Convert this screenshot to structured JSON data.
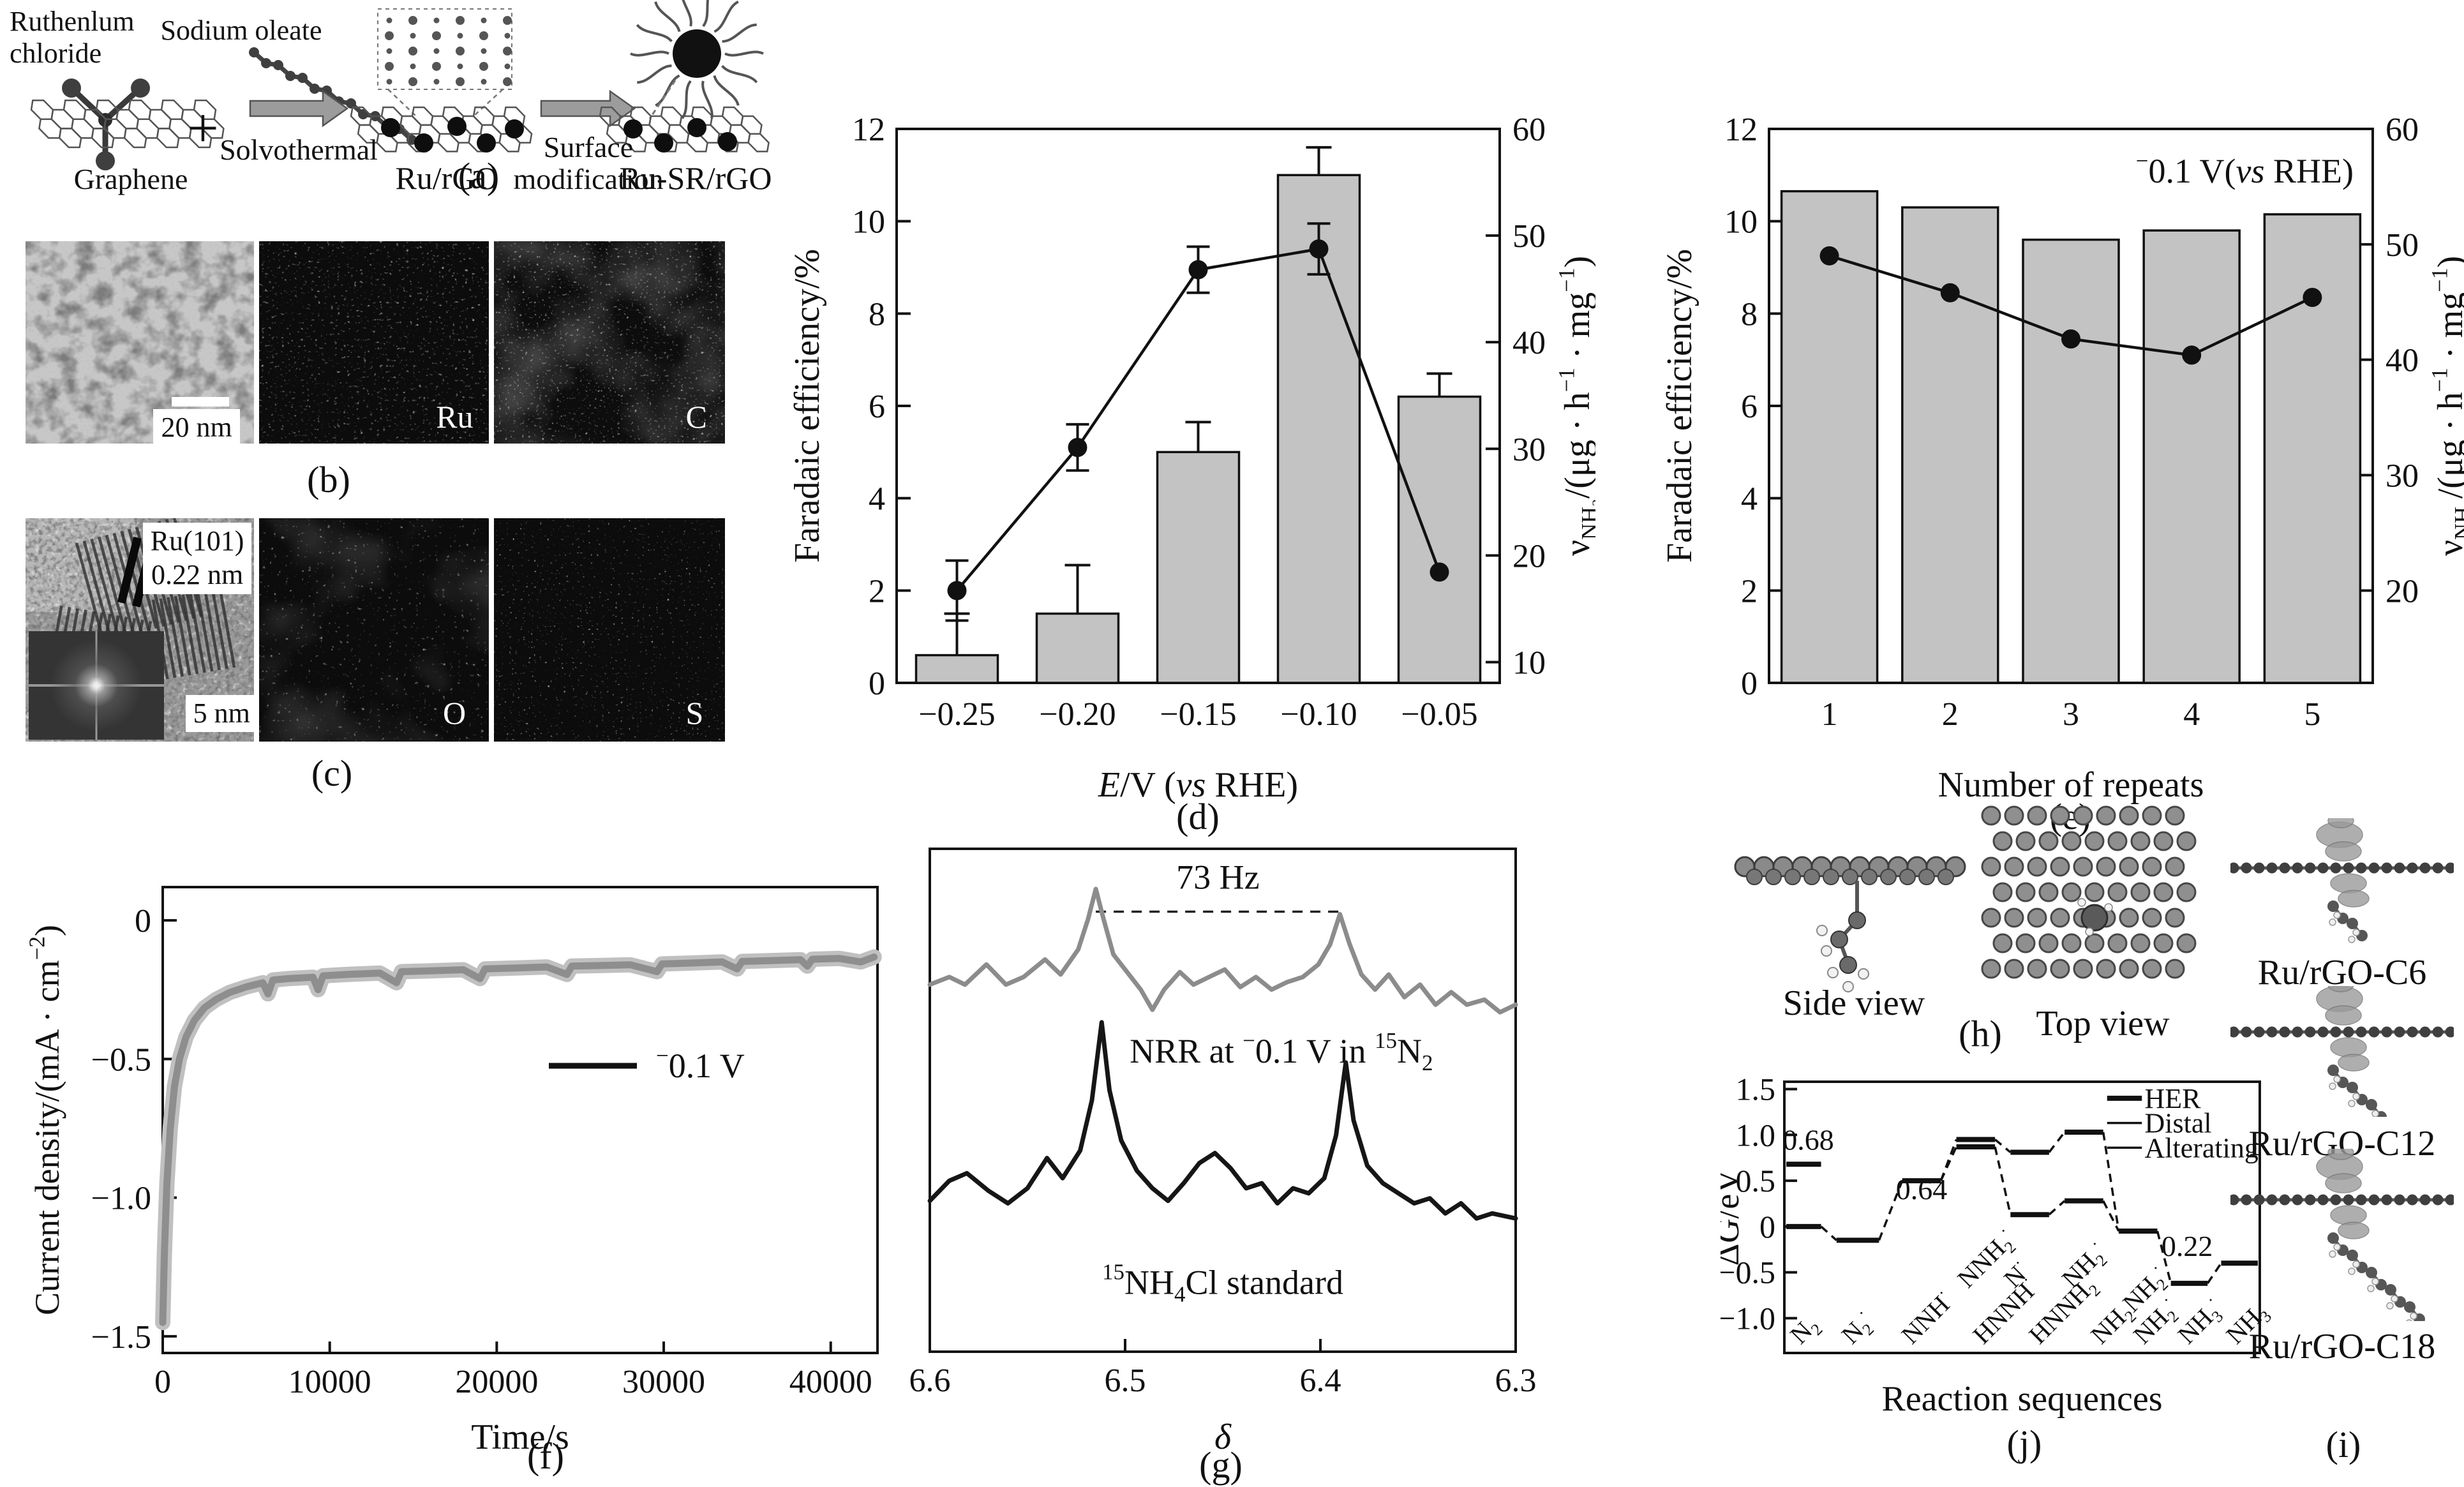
{
  "figure": {
    "captions": {
      "a": "(a)",
      "b": "(b)",
      "c": "(c)",
      "d": "(d)",
      "e": "(e)",
      "f": "(f)",
      "g": "(g)",
      "h": "(h)",
      "i": "(i)",
      "j": "(j)"
    }
  },
  "panel_a": {
    "reactant1_line1": "Ruthenlum",
    "reactant1_line2": "chloride",
    "plus": "+",
    "reactant2": "Sodium oleate",
    "support": "Graphene",
    "arrow1_label": "Solvothermal",
    "product1": "Ru/rGO",
    "arrow2_label_line1": "Surface",
    "arrow2_label_line2": "modification",
    "product2": "Ru-SR/rGO"
  },
  "panel_b": {
    "scale_bar": "20 nm",
    "map1": "Ru",
    "map2": "C"
  },
  "panel_c": {
    "lattice_line1": "Ru(101)",
    "lattice_line2": "0.22 nm",
    "scale_bar": "5 nm",
    "map1": "O",
    "map2": "S"
  },
  "panel_h": {
    "label_side": "Side view",
    "label_top": "Top view"
  },
  "panel_i": {
    "item1": "Ru/rGO-C6",
    "item2": "Ru/rGO-C12",
    "item3": "Ru/rGO-C18"
  },
  "colors": {
    "bar_fill": "#c3c3c3",
    "axis": "#111111",
    "gray_curve": "#8e8e8e",
    "gray_halo": "#c0c0c0",
    "nmr_gray": "#8c8c8c",
    "black": "#161616"
  },
  "chart_data": [
    {
      "panel": "d",
      "type": "bar+line",
      "categories": [
        "−0.25",
        "−0.20",
        "−0.15",
        "−0.10",
        "−0.05"
      ],
      "bar_series": {
        "name": "Faradaic efficiency",
        "axis": "left",
        "values": [
          0.6,
          1.5,
          5.0,
          11.0,
          6.2
        ],
        "err_up": [
          0.9,
          1.05,
          0.65,
          0.6,
          0.5
        ]
      },
      "line_series": {
        "name": "NH3 yield rate",
        "axis": "right",
        "values_right": [
          17.5,
          31,
          47,
          49,
          19.5
        ],
        "values_left_equiv": [
          2.0,
          5.1,
          8.95,
          9.4,
          2.4
        ],
        "err_left": [
          0.65,
          0.5,
          0.5,
          0.55,
          0
        ]
      },
      "xlabel": "*E*/V (*vs* RHE)",
      "ylabel_left": "Faradaic efficiency/%",
      "ylabel_right": "ν~NH₃~/(μg · h^−1^ · mg^−1^)",
      "ylim_left": [
        0,
        12
      ],
      "yticks_left": [
        0,
        2,
        4,
        6,
        8,
        10,
        12
      ],
      "yticks_right": [
        {
          "label": "60",
          "left_pos": 12
        },
        {
          "label": "50",
          "left_pos": 9.69
        },
        {
          "label": "40",
          "left_pos": 7.38
        },
        {
          "label": "30",
          "left_pos": 5.07
        },
        {
          "label": "20",
          "left_pos": 2.76
        },
        {
          "label": "10",
          "left_pos": 0.45
        }
      ],
      "grid": false
    },
    {
      "panel": "e",
      "type": "bar+line",
      "categories": [
        "1",
        "2",
        "3",
        "4",
        "5"
      ],
      "annotation": "^−^0.1 V(*vs* RHE)",
      "bar_series": {
        "name": "Faradaic efficiency",
        "axis": "left",
        "values": [
          10.65,
          10.3,
          9.6,
          9.8,
          10.15
        ],
        "err_up": [
          0,
          0,
          0,
          0,
          0
        ]
      },
      "line_series": {
        "name": "NH3 yield rate",
        "axis": "right",
        "values_right": [
          49,
          45.8,
          41.8,
          40.4,
          45.4
        ],
        "values_left_equiv": [
          9.25,
          8.45,
          7.45,
          7.1,
          8.35
        ],
        "err_left": [
          0,
          0,
          0,
          0,
          0
        ]
      },
      "xlabel": "Number of repeats",
      "ylabel_left": "Faradaic efficiency/%",
      "ylabel_right": "ν~NH₃~/(μg · h^−1^ · mg^−1^)",
      "ylim_left": [
        0,
        12
      ],
      "yticks_left": [
        0,
        2,
        4,
        6,
        8,
        10,
        12
      ],
      "yticks_right": [
        {
          "label": "60",
          "left_pos": 12
        },
        {
          "label": "50",
          "left_pos": 9.5
        },
        {
          "label": "40",
          "left_pos": 7
        },
        {
          "label": "30",
          "left_pos": 4.5
        },
        {
          "label": "20",
          "left_pos": 2
        }
      ],
      "grid": false
    },
    {
      "panel": "f",
      "type": "line",
      "xlabel": "Time/s",
      "ylabel": "Current density/(mA · cm^−2^)",
      "legend": "^−^0.1 V",
      "xlim": [
        0,
        42800
      ],
      "ylim": [
        -1.56,
        0.12
      ],
      "xticks": [
        {
          "label": "0",
          "v": 0
        },
        {
          "label": "10000",
          "v": 10000
        },
        {
          "label": "20000",
          "v": 20000
        },
        {
          "label": "30000",
          "v": 30000
        },
        {
          "label": "40000",
          "v": 40000
        }
      ],
      "yticks": [
        {
          "label": "0",
          "v": 0
        },
        {
          "label": "−0.5",
          "v": -0.5
        },
        {
          "label": "−1.0",
          "v": -1.0
        },
        {
          "label": "−1.5",
          "v": -1.5
        }
      ],
      "points": [
        [
          0,
          -1.45
        ],
        [
          100,
          -1.2
        ],
        [
          250,
          -0.95
        ],
        [
          450,
          -0.75
        ],
        [
          700,
          -0.6
        ],
        [
          1000,
          -0.5
        ],
        [
          1400,
          -0.42
        ],
        [
          1900,
          -0.36
        ],
        [
          2500,
          -0.315
        ],
        [
          3200,
          -0.285
        ],
        [
          4000,
          -0.26
        ],
        [
          5000,
          -0.24
        ],
        [
          6000,
          -0.225
        ],
        [
          6300,
          -0.265
        ],
        [
          6600,
          -0.215
        ],
        [
          7500,
          -0.21
        ],
        [
          9000,
          -0.205
        ],
        [
          9300,
          -0.25
        ],
        [
          9600,
          -0.2
        ],
        [
          11000,
          -0.195
        ],
        [
          13000,
          -0.19
        ],
        [
          14000,
          -0.225
        ],
        [
          14300,
          -0.185
        ],
        [
          16000,
          -0.182
        ],
        [
          18000,
          -0.178
        ],
        [
          19000,
          -0.21
        ],
        [
          19300,
          -0.175
        ],
        [
          21000,
          -0.172
        ],
        [
          23000,
          -0.168
        ],
        [
          24200,
          -0.195
        ],
        [
          24500,
          -0.165
        ],
        [
          26000,
          -0.163
        ],
        [
          28000,
          -0.16
        ],
        [
          29600,
          -0.185
        ],
        [
          29900,
          -0.157
        ],
        [
          31500,
          -0.154
        ],
        [
          33500,
          -0.15
        ],
        [
          34400,
          -0.175
        ],
        [
          34700,
          -0.148
        ],
        [
          36500,
          -0.145
        ],
        [
          38200,
          -0.142
        ],
        [
          38600,
          -0.165
        ],
        [
          38900,
          -0.14
        ],
        [
          40500,
          -0.137
        ],
        [
          41800,
          -0.15
        ],
        [
          42600,
          -0.132
        ]
      ]
    },
    {
      "panel": "g",
      "type": "line",
      "xlabel": "*δ*",
      "xlim": [
        6.6,
        6.3
      ],
      "xticks": [
        {
          "label": "6.6",
          "v": 6.6
        },
        {
          "label": "6.5",
          "v": 6.5
        },
        {
          "label": "6.4",
          "v": 6.4
        },
        {
          "label": "6.3",
          "v": 6.3
        }
      ],
      "annotation": "73 Hz",
      "peak_separation_hz": 73,
      "peaks_delta": [
        6.515,
        6.39
      ],
      "dash_y": 0.875,
      "traces": [
        {
          "label": "NRR at ^−^0.1 V in ^15^N~2~",
          "color_key": "nmr_gray",
          "label_xy": [
            6.42,
            0.575
          ],
          "points": [
            [
              6.6,
              0.73
            ],
            [
              6.59,
              0.745
            ],
            [
              6.582,
              0.73
            ],
            [
              6.571,
              0.77
            ],
            [
              6.561,
              0.73
            ],
            [
              6.552,
              0.745
            ],
            [
              6.541,
              0.78
            ],
            [
              6.533,
              0.75
            ],
            [
              6.524,
              0.8
            ],
            [
              6.519,
              0.86
            ],
            [
              6.515,
              0.92
            ],
            [
              6.511,
              0.86
            ],
            [
              6.506,
              0.79
            ],
            [
              6.499,
              0.755
            ],
            [
              6.492,
              0.72
            ],
            [
              6.486,
              0.68
            ],
            [
              6.48,
              0.72
            ],
            [
              6.472,
              0.755
            ],
            [
              6.465,
              0.73
            ],
            [
              6.457,
              0.745
            ],
            [
              6.449,
              0.76
            ],
            [
              6.441,
              0.725
            ],
            [
              6.433,
              0.745
            ],
            [
              6.425,
              0.72
            ],
            [
              6.417,
              0.735
            ],
            [
              6.409,
              0.745
            ],
            [
              6.401,
              0.77
            ],
            [
              6.395,
              0.81
            ],
            [
              6.39,
              0.87
            ],
            [
              6.385,
              0.81
            ],
            [
              6.379,
              0.75
            ],
            [
              6.372,
              0.72
            ],
            [
              6.365,
              0.75
            ],
            [
              6.357,
              0.705
            ],
            [
              6.349,
              0.73
            ],
            [
              6.341,
              0.69
            ],
            [
              6.333,
              0.715
            ],
            [
              6.325,
              0.69
            ],
            [
              6.316,
              0.7
            ],
            [
              6.308,
              0.675
            ],
            [
              6.3,
              0.69
            ]
          ]
        },
        {
          "label": "^15^NH~4~Cl standard",
          "color_key": "black",
          "label_xy": [
            6.45,
            0.115
          ],
          "points": [
            [
              6.6,
              0.3
            ],
            [
              6.59,
              0.34
            ],
            [
              6.581,
              0.355
            ],
            [
              6.57,
              0.32
            ],
            [
              6.56,
              0.295
            ],
            [
              6.55,
              0.325
            ],
            [
              6.54,
              0.385
            ],
            [
              6.532,
              0.345
            ],
            [
              6.523,
              0.4
            ],
            [
              6.517,
              0.5
            ],
            [
              6.512,
              0.655
            ],
            [
              6.508,
              0.52
            ],
            [
              6.502,
              0.42
            ],
            [
              6.494,
              0.36
            ],
            [
              6.486,
              0.325
            ],
            [
              6.478,
              0.3
            ],
            [
              6.47,
              0.335
            ],
            [
              6.462,
              0.375
            ],
            [
              6.454,
              0.395
            ],
            [
              6.446,
              0.365
            ],
            [
              6.438,
              0.325
            ],
            [
              6.43,
              0.335
            ],
            [
              6.422,
              0.295
            ],
            [
              6.414,
              0.325
            ],
            [
              6.406,
              0.315
            ],
            [
              6.398,
              0.345
            ],
            [
              6.392,
              0.43
            ],
            [
              6.387,
              0.575
            ],
            [
              6.383,
              0.46
            ],
            [
              6.376,
              0.37
            ],
            [
              6.368,
              0.335
            ],
            [
              6.36,
              0.315
            ],
            [
              6.352,
              0.295
            ],
            [
              6.344,
              0.305
            ],
            [
              6.336,
              0.275
            ],
            [
              6.328,
              0.295
            ],
            [
              6.32,
              0.265
            ],
            [
              6.312,
              0.275
            ],
            [
              6.3,
              0.265
            ]
          ]
        }
      ]
    },
    {
      "panel": "j",
      "type": "energy_diagram",
      "ylabel": "Δ*G*/eV",
      "xlabel": "Reaction sequences",
      "ylim": [
        -1.38,
        1.58
      ],
      "xlim": [
        0,
        12.3
      ],
      "yticks": [
        {
          "label": "1.5",
          "v": 1.5
        },
        {
          "label": "1.0",
          "v": 1.0
        },
        {
          "label": "0.5",
          "v": 0.5
        },
        {
          "label": "0",
          "v": 0
        },
        {
          "label": "−0.5",
          "v": -0.5
        },
        {
          "label": "−1.0",
          "v": -1.0
        }
      ],
      "legend": [
        {
          "label": "HER",
          "lw": 8
        },
        {
          "label": "Distal",
          "lw": 3.5
        },
        {
          "label": "Alterating",
          "lw": 3.5
        }
      ],
      "levels": [
        {
          "id": "HER",
          "x": [
            0.05,
            0.95
          ],
          "e": 0.68
        },
        {
          "id": "N2",
          "x": [
            0.05,
            0.95
          ],
          "e": 0.0
        },
        {
          "id": "N2*",
          "x": [
            1.35,
            2.45
          ],
          "e": -0.15
        },
        {
          "id": "NNH*",
          "x": [
            3.05,
            4.05
          ],
          "e": 0.5
        },
        {
          "id": "NNH2*",
          "x": [
            4.45,
            5.45
          ],
          "e": 0.95
        },
        {
          "id": "HNNH*",
          "x": [
            4.45,
            5.45
          ],
          "e": 0.87
        },
        {
          "id": "N*",
          "x": [
            5.85,
            6.85
          ],
          "e": 0.81
        },
        {
          "id": "HNNH2*",
          "x": [
            5.85,
            6.85
          ],
          "e": 0.13
        },
        {
          "id": "NH2*-distal",
          "x": [
            7.25,
            8.25
          ],
          "e": 1.03
        },
        {
          "id": "NH2NH2*",
          "x": [
            7.25,
            8.25
          ],
          "e": 0.28
        },
        {
          "id": "NH2*",
          "x": [
            8.65,
            9.65
          ],
          "e": -0.05
        },
        {
          "id": "NH3*",
          "x": [
            10.0,
            10.95
          ],
          "e": -0.62
        },
        {
          "id": "NH3",
          "x": [
            11.3,
            12.25
          ],
          "e": -0.4
        }
      ],
      "connectors": [
        [
          1,
          2
        ],
        [
          2,
          3
        ],
        [
          3,
          4
        ],
        [
          3,
          5
        ],
        [
          4,
          6
        ],
        [
          5,
          7
        ],
        [
          6,
          8
        ],
        [
          7,
          9
        ],
        [
          8,
          10
        ],
        [
          9,
          10
        ],
        [
          10,
          11
        ],
        [
          11,
          12
        ]
      ],
      "annotations": [
        {
          "text": "0.68",
          "x": 0.62,
          "e": 0.84
        },
        {
          "text": "0.64",
          "x": 3.55,
          "e": 0.3
        },
        {
          "text": "0.22",
          "x": 10.42,
          "e": -0.32
        }
      ],
      "species": [
        {
          "label": "N~2~",
          "x": 0.42,
          "row": 0
        },
        {
          "label": "N~2~^·^",
          "x": 1.75,
          "row": 0
        },
        {
          "label": "NNH^·^",
          "x": 3.3,
          "row": 0
        },
        {
          "label": "NNH~2~^·^",
          "x": 4.75,
          "row": 1
        },
        {
          "label": "HNNH^·^",
          "x": 5.15,
          "row": 0
        },
        {
          "label": "N^·^",
          "x": 5.95,
          "row": 1
        },
        {
          "label": "HNNH~2~^·^",
          "x": 6.6,
          "row": 0
        },
        {
          "label": "NH~2~^·^",
          "x": 7.45,
          "row": 1
        },
        {
          "label": "NH~2~NH~2~^·^",
          "x": 8.2,
          "row": 0
        },
        {
          "label": "NH~2~^·^",
          "x": 9.3,
          "row": 0
        },
        {
          "label": "NH~3~^·^",
          "x": 10.45,
          "row": 0
        },
        {
          "label": "NH~3~",
          "x": 11.7,
          "row": 0
        }
      ]
    }
  ]
}
